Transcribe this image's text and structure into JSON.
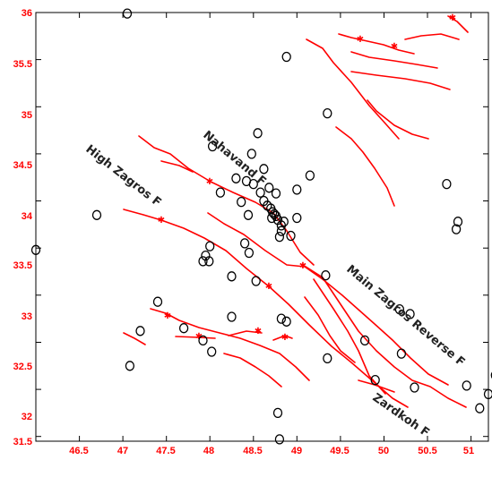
{
  "colors": {
    "fault": "#ff0000",
    "tick_label": "#ff0000",
    "quake": "#000000",
    "frame": "#000000"
  },
  "axes": {
    "x_range": [
      46,
      51.2
    ],
    "y_range": [
      31.45,
      36
    ],
    "x_ticks": [
      "46.5",
      "47",
      "47.5",
      "48",
      "48.5",
      "49",
      "49.5",
      "50",
      "50.5",
      "51"
    ],
    "y_ticks": [
      "36",
      "35.5",
      "35",
      "34.5",
      "34",
      "33.5",
      "33",
      "32.5",
      "32",
      "31.5"
    ]
  },
  "fault_labels": [
    {
      "text": "High Zagros F"
    },
    {
      "text": "Nahavand F"
    },
    {
      "text": "Main Zagros Reverse F"
    },
    {
      "text": "Zardkoh F"
    }
  ],
  "earthquakes": [
    [
      47.05,
      35.99
    ],
    [
      48.88,
      35.53
    ],
    [
      49.35,
      34.93
    ],
    [
      48.55,
      34.72
    ],
    [
      48.03,
      34.58
    ],
    [
      48.48,
      34.5
    ],
    [
      49.15,
      34.27
    ],
    [
      48.62,
      34.34
    ],
    [
      48.3,
      34.24
    ],
    [
      48.42,
      34.21
    ],
    [
      48.5,
      34.18
    ],
    [
      49.0,
      34.12
    ],
    [
      48.12,
      34.09
    ],
    [
      48.58,
      34.09
    ],
    [
      48.68,
      34.14
    ],
    [
      48.76,
      34.08
    ],
    [
      48.36,
      33.99
    ],
    [
      48.62,
      34.0
    ],
    [
      48.66,
      33.95
    ],
    [
      48.7,
      33.92
    ],
    [
      48.72,
      33.88
    ],
    [
      48.74,
      33.86
    ],
    [
      48.76,
      33.84
    ],
    [
      48.71,
      33.82
    ],
    [
      48.78,
      33.8
    ],
    [
      48.85,
      33.78
    ],
    [
      48.82,
      33.74
    ],
    [
      48.82,
      33.68
    ],
    [
      48.8,
      33.62
    ],
    [
      49.0,
      33.82
    ],
    [
      48.93,
      33.63
    ],
    [
      48.44,
      33.85
    ],
    [
      46.7,
      33.85
    ],
    [
      48.0,
      33.52
    ],
    [
      48.4,
      33.55
    ],
    [
      48.45,
      33.45
    ],
    [
      47.95,
      33.42
    ],
    [
      47.92,
      33.36
    ],
    [
      47.99,
      33.36
    ],
    [
      48.25,
      33.2
    ],
    [
      48.53,
      33.15
    ],
    [
      49.33,
      33.21
    ],
    [
      50.72,
      34.18
    ],
    [
      50.85,
      33.78
    ],
    [
      50.83,
      33.7
    ],
    [
      46.0,
      33.48
    ],
    [
      47.4,
      32.93
    ],
    [
      47.2,
      32.62
    ],
    [
      47.7,
      32.65
    ],
    [
      47.92,
      32.52
    ],
    [
      48.02,
      32.4
    ],
    [
      48.25,
      32.77
    ],
    [
      48.82,
      32.75
    ],
    [
      48.88,
      32.72
    ],
    [
      49.35,
      32.33
    ],
    [
      49.78,
      32.52
    ],
    [
      50.18,
      32.85
    ],
    [
      50.3,
      32.8
    ],
    [
      50.2,
      32.38
    ],
    [
      49.9,
      32.1
    ],
    [
      50.35,
      32.02
    ],
    [
      50.95,
      32.04
    ],
    [
      51.1,
      31.8
    ],
    [
      51.2,
      31.95
    ],
    [
      51.28,
      32.15
    ],
    [
      48.78,
      31.75
    ],
    [
      48.8,
      31.47
    ],
    [
      47.08,
      32.25
    ]
  ]
}
